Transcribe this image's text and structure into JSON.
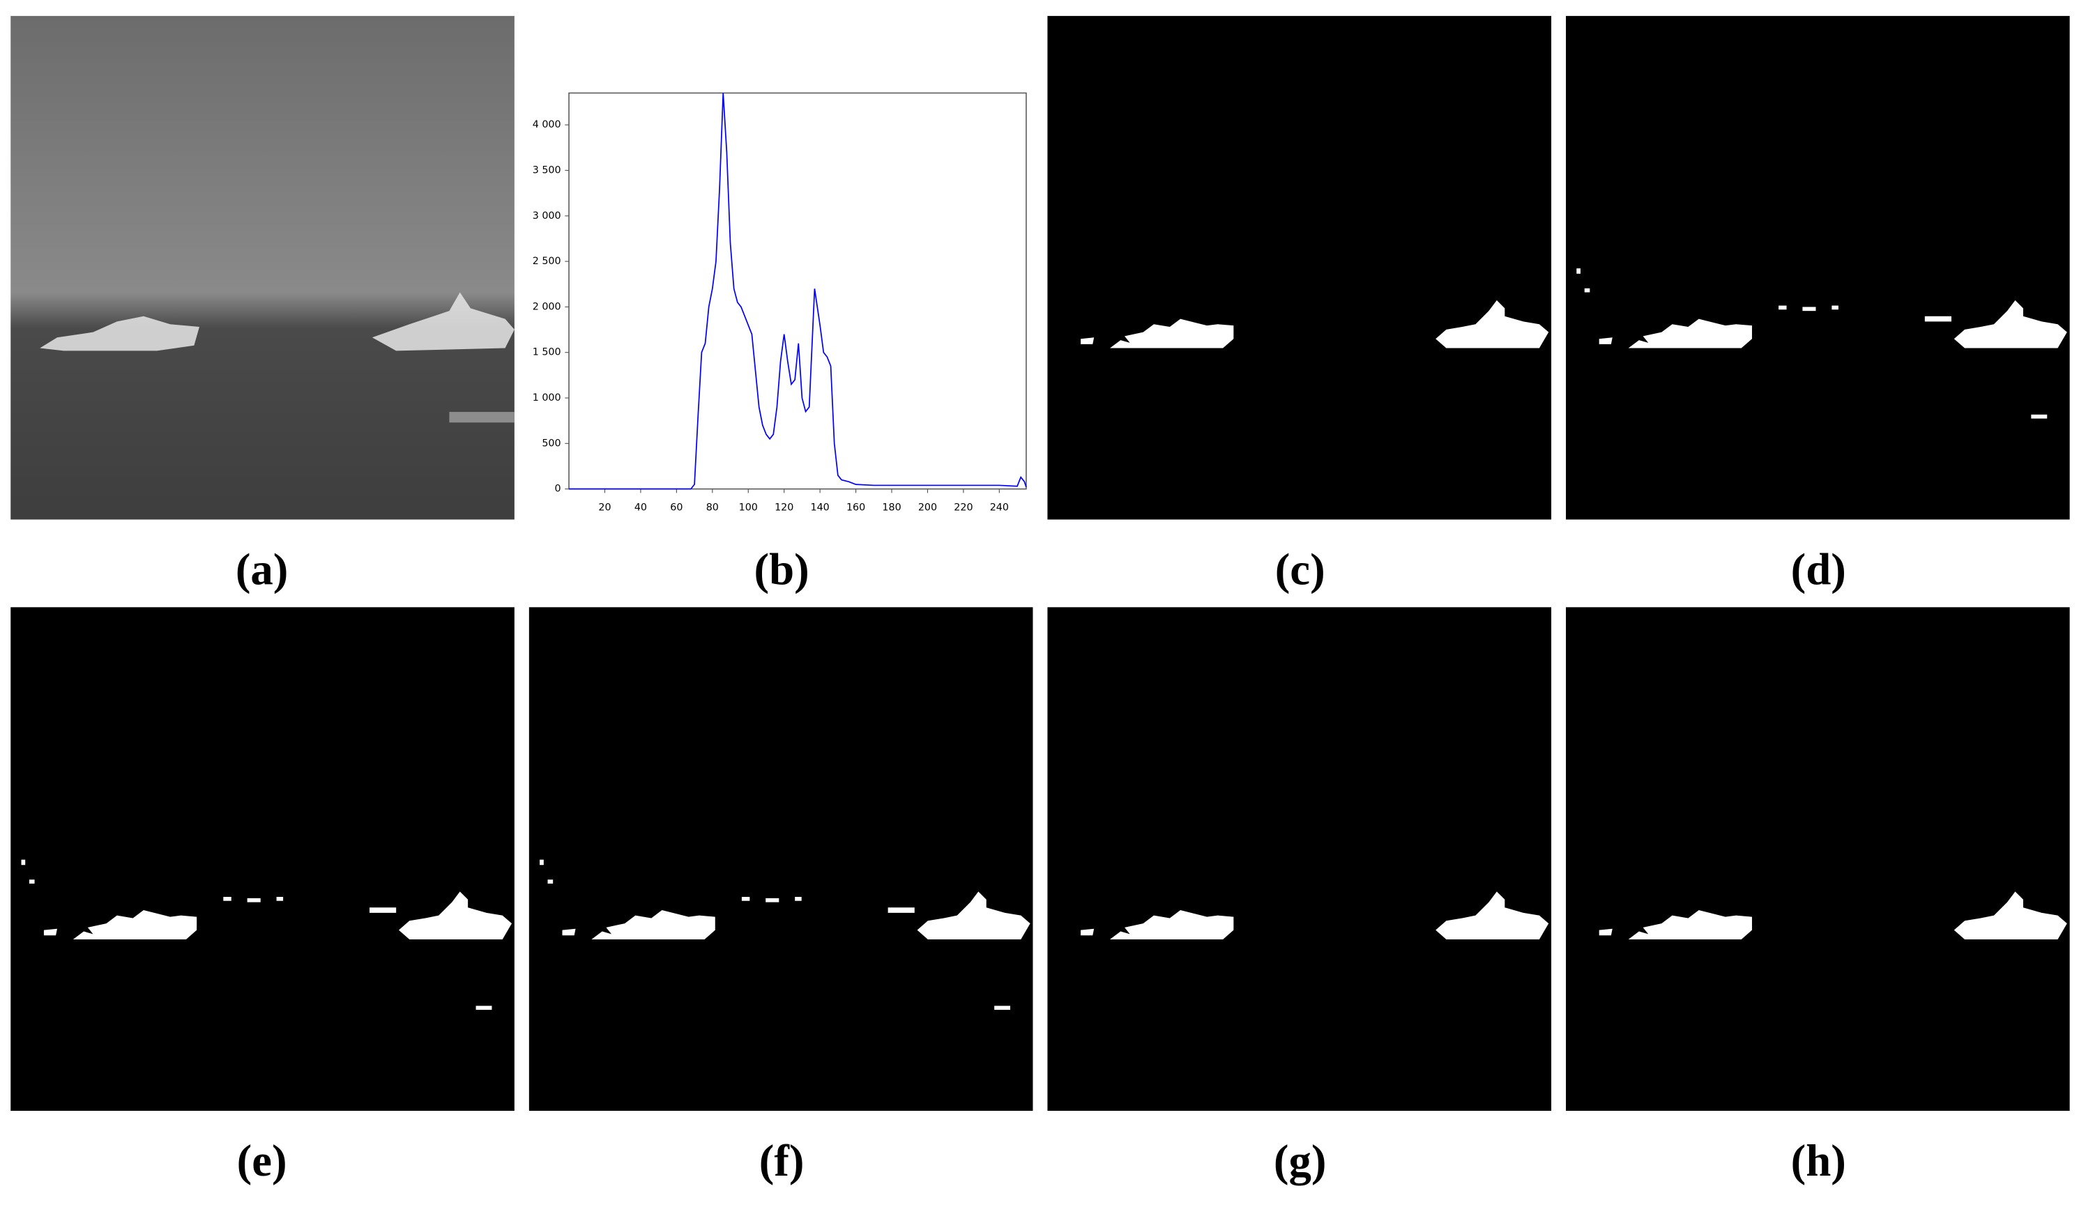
{
  "panels": [
    {
      "label": "(a)"
    },
    {
      "label": "(b)"
    },
    {
      "label": "(c)"
    },
    {
      "label": "(d)"
    },
    {
      "label": "(e)"
    },
    {
      "label": "(f)"
    },
    {
      "label": "(g)"
    },
    {
      "label": "(h)"
    }
  ],
  "chart_data": {
    "type": "line",
    "x": [
      0,
      68,
      70,
      72,
      74,
      76,
      78,
      80,
      82,
      84,
      86,
      88,
      90,
      92,
      94,
      96,
      98,
      100,
      102,
      104,
      106,
      108,
      110,
      112,
      114,
      116,
      118,
      120,
      122,
      124,
      126,
      128,
      130,
      132,
      134,
      137,
      140,
      142,
      144,
      146,
      148,
      150,
      152,
      156,
      160,
      170,
      180,
      200,
      220,
      240,
      250,
      252,
      254,
      255
    ],
    "series": [
      {
        "color": "#0000ff",
        "values": [
          0,
          0,
          50,
          800,
          1500,
          1600,
          2000,
          2200,
          2500,
          3300,
          4350,
          3700,
          2700,
          2200,
          2050,
          2000,
          1900,
          1800,
          1700,
          1300,
          900,
          700,
          600,
          550,
          600,
          900,
          1400,
          1700,
          1400,
          1150,
          1200,
          1600,
          1000,
          850,
          900,
          2200,
          1800,
          1500,
          1450,
          1350,
          500,
          150,
          100,
          80,
          50,
          40,
          40,
          40,
          40,
          40,
          30,
          130,
          80,
          20
        ]
      }
    ],
    "xlim": [
      0,
      255
    ],
    "ylim": [
      0,
      4350
    ],
    "xticks": [
      20,
      40,
      60,
      80,
      100,
      120,
      140,
      160,
      180,
      200,
      220,
      240
    ],
    "yticks": [
      0,
      500,
      {
        "value": 1000,
        "label": "1 000"
      },
      {
        "value": 1500,
        "label": "1 500"
      },
      {
        "value": 2000,
        "label": "2 000"
      },
      {
        "value": 2500,
        "label": "2 500"
      },
      {
        "value": 3000,
        "label": "3 000"
      },
      {
        "value": 3500,
        "label": "3 500"
      },
      {
        "value": 4000,
        "label": "4 000"
      }
    ]
  }
}
